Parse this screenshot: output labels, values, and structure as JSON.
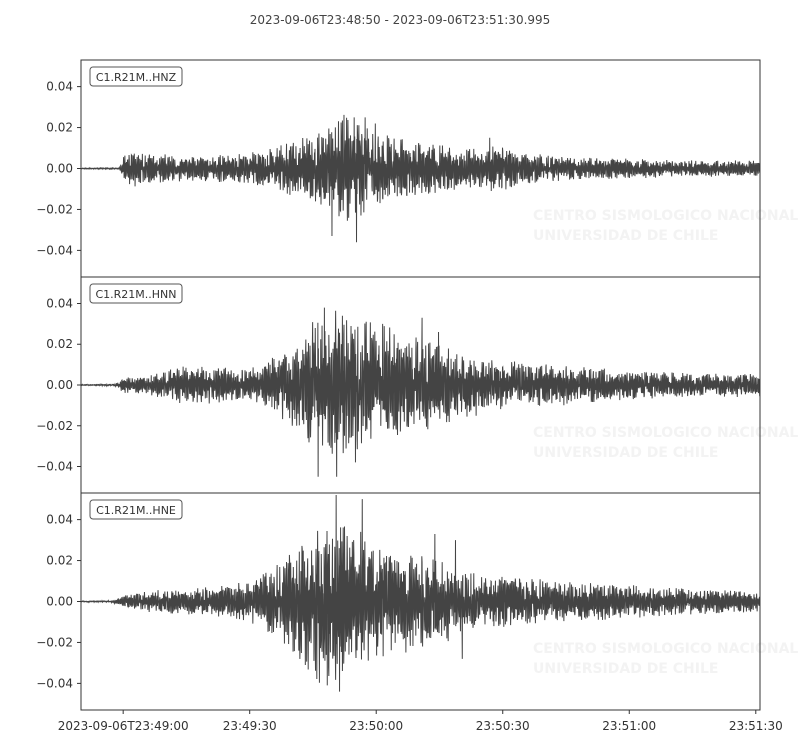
{
  "chart_data": {
    "type": "line",
    "title": "2023-09-06T23:48:50  -  2023-09-06T23:51:30.995",
    "x_axis": {
      "start": "23:48:50",
      "end": "23:51:30.995",
      "tick_labels": [
        "2023-09-06T23:49:00",
        "23:49:30",
        "23:50:00",
        "23:50:30",
        "23:51:00",
        "23:51:30"
      ],
      "tick_times_s": [
        10,
        40,
        70,
        100,
        130,
        160
      ]
    },
    "y_tick_labels": [
      "0.04",
      "0.02",
      "0.00",
      "−0.02",
      "−0.04"
    ],
    "y_tick_values": [
      0.04,
      0.02,
      0.0,
      -0.02,
      -0.04
    ],
    "ylim": [
      -0.053,
      0.053
    ],
    "grid": false,
    "line_color": "#444444",
    "watermark": {
      "logo": "CSN",
      "line1": "CENTRO SISMOLOGICO NACIONAL",
      "line2": "UNIVERSIDAD DE CHILE"
    },
    "series": [
      {
        "name": "C1.R21M..HNZ",
        "envelope": [
          [
            0,
            0.0003
          ],
          [
            9,
            0.0004
          ],
          [
            10,
            0.006
          ],
          [
            12,
            0.01
          ],
          [
            15,
            0.008
          ],
          [
            25,
            0.006
          ],
          [
            35,
            0.007
          ],
          [
            45,
            0.01
          ],
          [
            50,
            0.014
          ],
          [
            55,
            0.018
          ],
          [
            60,
            0.022
          ],
          [
            63,
            0.028
          ],
          [
            66,
            0.024
          ],
          [
            70,
            0.02
          ],
          [
            75,
            0.016
          ],
          [
            82,
            0.013
          ],
          [
            88,
            0.011
          ],
          [
            95,
            0.01
          ],
          [
            100,
            0.012
          ],
          [
            105,
            0.008
          ],
          [
            115,
            0.006
          ],
          [
            130,
            0.005
          ],
          [
            145,
            0.004
          ],
          [
            161,
            0.004
          ]
        ],
        "spikes": [
          [
            59.5,
            -0.033
          ],
          [
            65.3,
            -0.036
          ],
          [
            64.8,
            0.025
          ],
          [
            67.4,
            0.025
          ],
          [
            69.8,
            0.022
          ],
          [
            96.9,
            0.015
          ],
          [
            97.3,
            -0.011
          ]
        ]
      },
      {
        "name": "C1.R21M..HNN",
        "envelope": [
          [
            0,
            0.0003
          ],
          [
            8,
            0.0005
          ],
          [
            10,
            0.004
          ],
          [
            15,
            0.005
          ],
          [
            20,
            0.007
          ],
          [
            25,
            0.01
          ],
          [
            30,
            0.01
          ],
          [
            40,
            0.008
          ],
          [
            45,
            0.013
          ],
          [
            50,
            0.022
          ],
          [
            55,
            0.032
          ],
          [
            60,
            0.038
          ],
          [
            65,
            0.034
          ],
          [
            70,
            0.03
          ],
          [
            75,
            0.028
          ],
          [
            80,
            0.024
          ],
          [
            85,
            0.02
          ],
          [
            92,
            0.016
          ],
          [
            100,
            0.012
          ],
          [
            110,
            0.011
          ],
          [
            120,
            0.009
          ],
          [
            135,
            0.007
          ],
          [
            150,
            0.006
          ],
          [
            161,
            0.006
          ]
        ],
        "spikes": [
          [
            57.7,
            0.038
          ],
          [
            56.2,
            -0.045
          ],
          [
            60.6,
            -0.045
          ],
          [
            62.0,
            0.034
          ],
          [
            65.1,
            -0.038
          ],
          [
            71.5,
            0.03
          ],
          [
            80.9,
            0.033
          ],
          [
            84.8,
            0.026
          ]
        ]
      },
      {
        "name": "C1.R21M..HNE",
        "envelope": [
          [
            0,
            0.0003
          ],
          [
            7,
            0.0004
          ],
          [
            9,
            0.002
          ],
          [
            12,
            0.004
          ],
          [
            15,
            0.005
          ],
          [
            20,
            0.006
          ],
          [
            30,
            0.007
          ],
          [
            40,
            0.01
          ],
          [
            48,
            0.02
          ],
          [
            52,
            0.034
          ],
          [
            56,
            0.04
          ],
          [
            60,
            0.044
          ],
          [
            65,
            0.038
          ],
          [
            70,
            0.03
          ],
          [
            75,
            0.026
          ],
          [
            80,
            0.024
          ],
          [
            85,
            0.022
          ],
          [
            90,
            0.016
          ],
          [
            96,
            0.013
          ],
          [
            105,
            0.012
          ],
          [
            115,
            0.01
          ],
          [
            125,
            0.009
          ],
          [
            140,
            0.007
          ],
          [
            150,
            0.006
          ],
          [
            161,
            0.005
          ]
        ],
        "spikes": [
          [
            60.5,
            0.052
          ],
          [
            61.3,
            -0.044
          ],
          [
            66.7,
            0.05
          ],
          [
            58.4,
            -0.041
          ],
          [
            83.9,
            0.033
          ],
          [
            88.8,
            0.03
          ],
          [
            90.4,
            -0.028
          ],
          [
            97.9,
            -0.012
          ]
        ]
      }
    ]
  }
}
